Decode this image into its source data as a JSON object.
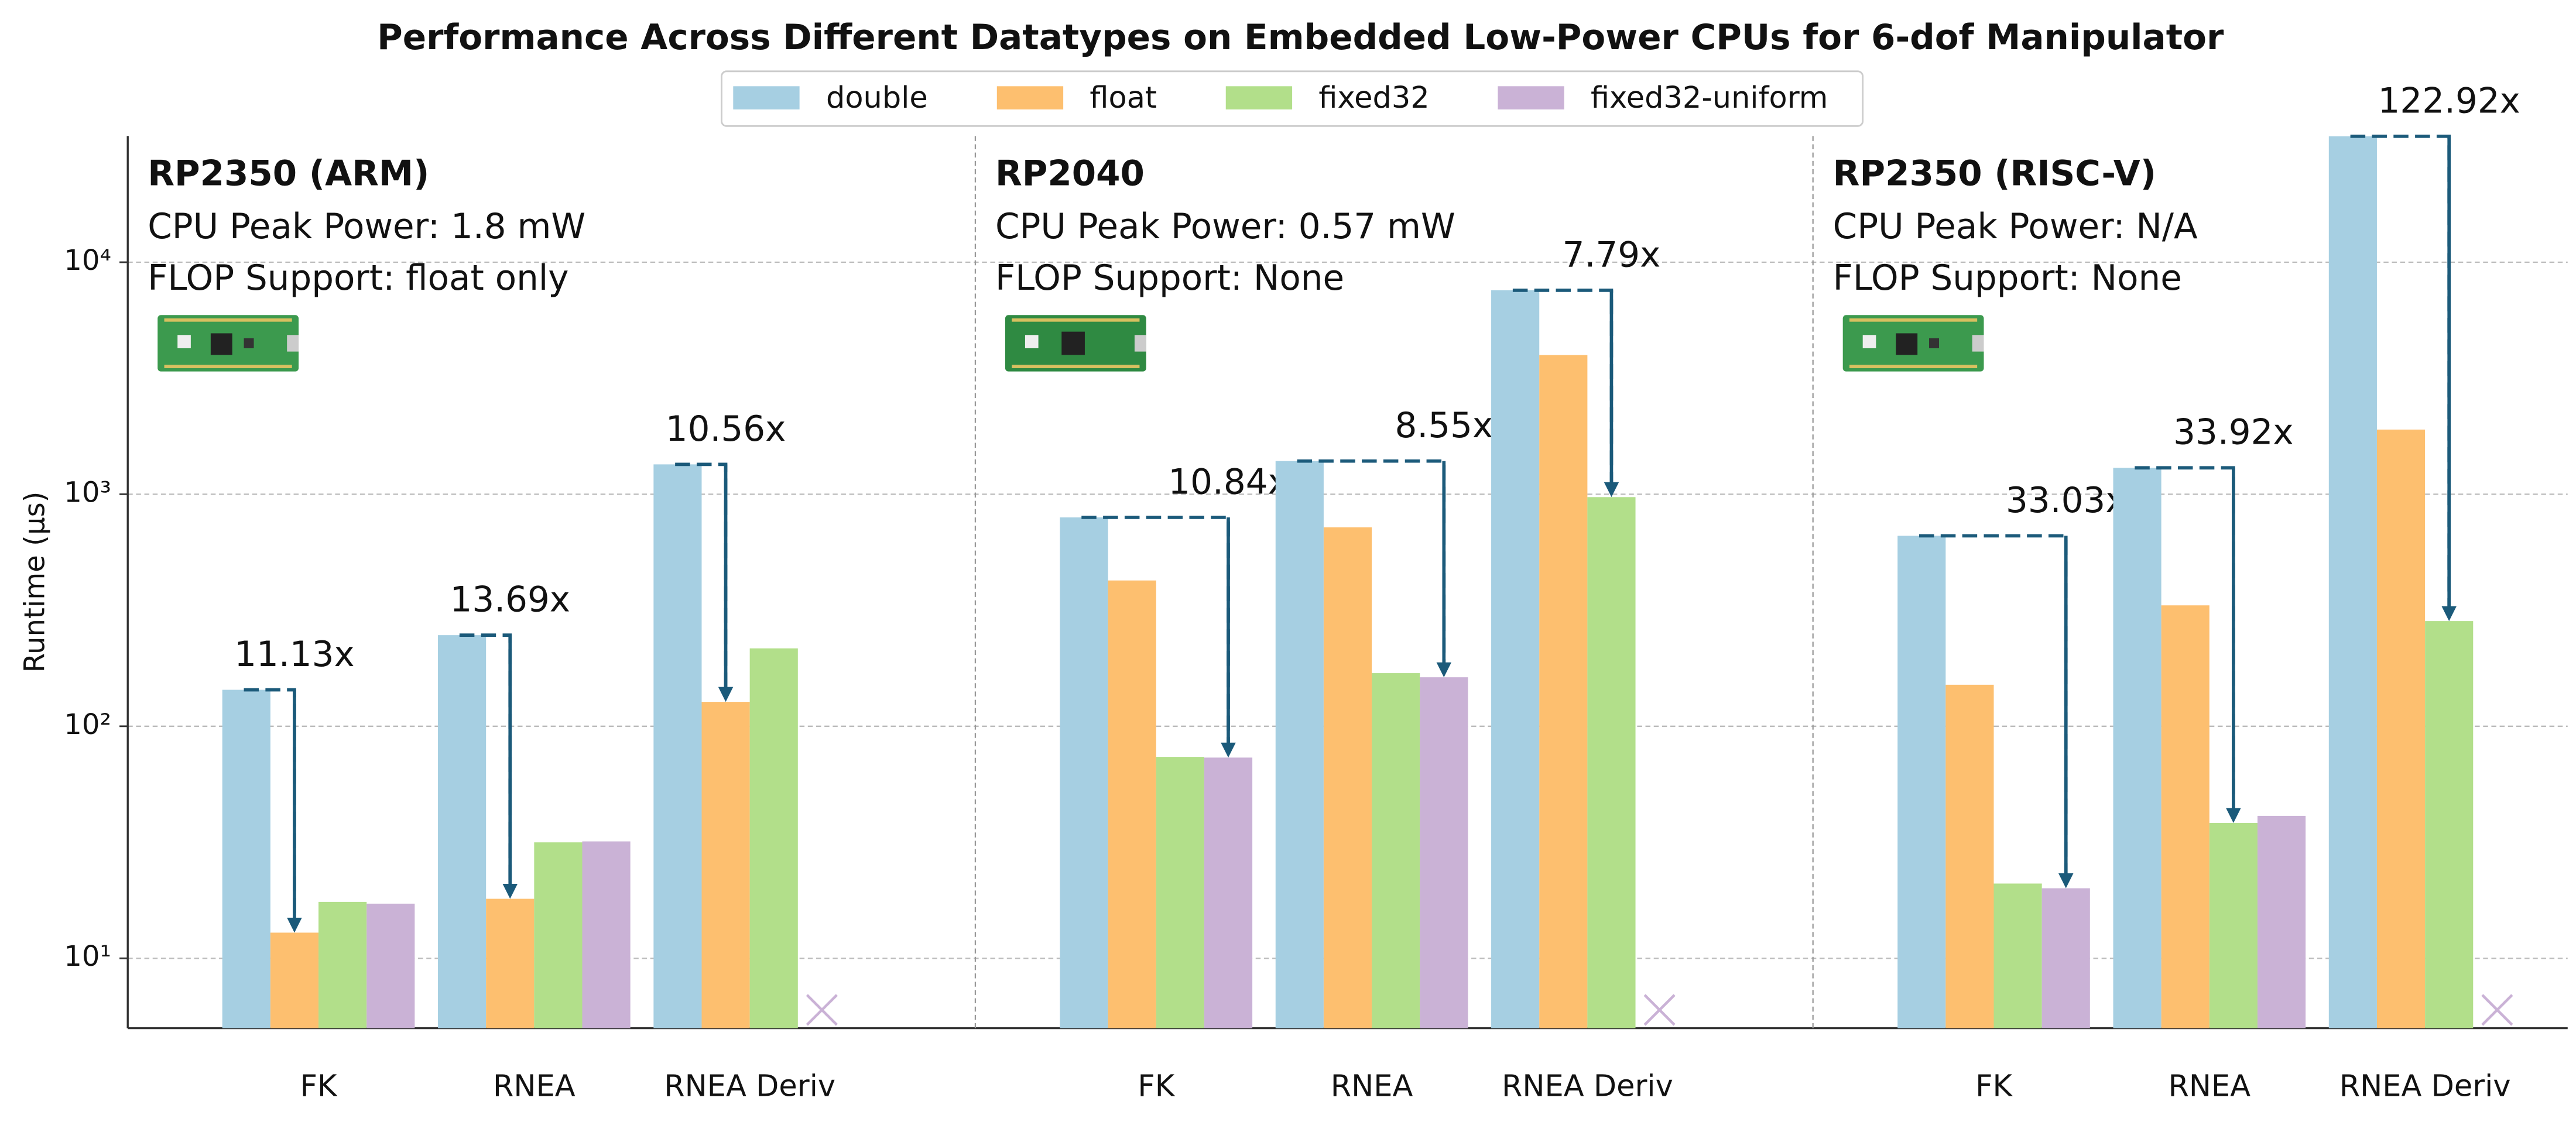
{
  "title": "Performance Across Different Datatypes on Embedded Low-Power CPUs for 6-dof Manipulator",
  "chart_data": [
    {
      "type": "bar",
      "log_scale": true,
      "grid": true,
      "y_label": "Runtime (µs)",
      "ylim": [
        5,
        35000
      ],
      "yticks": [
        {
          "value": 10,
          "label": "10¹"
        },
        {
          "value": 100,
          "label": "10²"
        },
        {
          "value": 1000,
          "label": "10³"
        },
        {
          "value": 10000,
          "label": "10⁴"
        }
      ],
      "panel_title": "RP2350 (ARM)",
      "panel_lines": [
        "CPU Peak Power: 1.8 mW",
        "FLOP Support: float only"
      ],
      "categories": [
        "FK",
        "RNEA",
        "RNEA Deriv"
      ],
      "series": [
        {
          "name": "double",
          "color": "#a6cfe2",
          "values": [
            143.6,
            247,
            1345
          ]
        },
        {
          "name": "float",
          "color": "#fdbf6f",
          "values": [
            12.9,
            18.05,
            127.4
          ]
        },
        {
          "name": "fixed32",
          "color": "#b2df8a",
          "values": [
            17.5,
            31.6,
            216.7
          ]
        },
        {
          "name": "fixed32-uniform",
          "color": "#cab2d6",
          "values": [
            17.2,
            31.9,
            null
          ]
        }
      ],
      "speedup_labels": [
        "11.13x",
        "13.69x",
        "10.56x"
      ]
    },
    {
      "type": "bar",
      "log_scale": true,
      "panel_title": "RP2040",
      "panel_lines": [
        "CPU Peak Power: 0.57 mW",
        "FLOP Support: None"
      ],
      "categories": [
        "FK",
        "RNEA",
        "RNEA Deriv"
      ],
      "series": [
        {
          "name": "double",
          "color": "#a6cfe2",
          "values": [
            795,
            1390,
            7570
          ]
        },
        {
          "name": "float",
          "color": "#fdbf6f",
          "values": [
            425,
            720,
            3980
          ]
        },
        {
          "name": "fixed32",
          "color": "#b2df8a",
          "values": [
            73.8,
            169.4,
            972
          ]
        },
        {
          "name": "fixed32-uniform",
          "color": "#cab2d6",
          "values": [
            73.3,
            162.6,
            null
          ]
        }
      ],
      "speedup_labels": [
        "10.84x",
        "8.55x",
        "7.79x"
      ]
    },
    {
      "type": "bar",
      "log_scale": true,
      "panel_title": "RP2350 (RISC-V)",
      "panel_lines": [
        "CPU Peak Power: N/A",
        "FLOP Support: None"
      ],
      "categories": [
        "FK",
        "RNEA",
        "RNEA Deriv"
      ],
      "series": [
        {
          "name": "double",
          "color": "#a6cfe2",
          "values": [
            662,
            1300,
            34900
          ]
        },
        {
          "name": "float",
          "color": "#fdbf6f",
          "values": [
            151,
            332,
            1900
          ]
        },
        {
          "name": "fixed32",
          "color": "#b2df8a",
          "values": [
            21,
            38.3,
            284
          ]
        },
        {
          "name": "fixed32-uniform",
          "color": "#cab2d6",
          "values": [
            20.04,
            41.1,
            null
          ]
        }
      ],
      "speedup_labels": [
        "33.03x",
        "33.92x",
        "122.92x"
      ]
    }
  ]
}
